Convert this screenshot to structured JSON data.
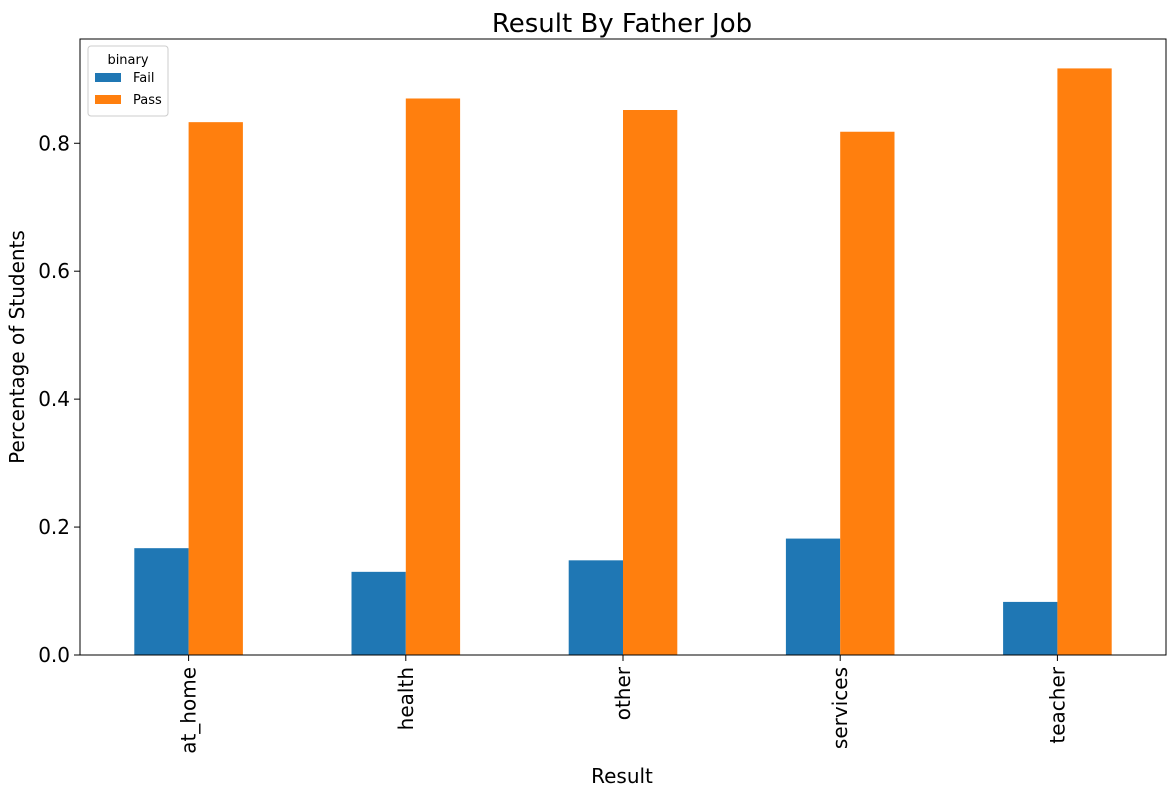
{
  "chart_data": {
    "type": "bar",
    "title": "Result By Father Job",
    "xlabel": "Result",
    "ylabel": "Percentage of Students",
    "categories": [
      "at_home",
      "health",
      "other",
      "services",
      "teacher"
    ],
    "series": [
      {
        "name": "Fail",
        "color": "#1f77b4",
        "values": [
          0.167,
          0.13,
          0.148,
          0.182,
          0.083
        ]
      },
      {
        "name": "Pass",
        "color": "#ff7f0e",
        "values": [
          0.833,
          0.87,
          0.852,
          0.818,
          0.917
        ]
      }
    ],
    "ylim": [
      0,
      0.963
    ],
    "yticks": [
      0.0,
      0.2,
      0.4,
      0.6,
      0.8
    ],
    "ytick_labels": [
      "0.0",
      "0.2",
      "0.4",
      "0.6",
      "0.8"
    ],
    "legend": {
      "title": "binary",
      "position": "top-left"
    },
    "grid": false
  }
}
